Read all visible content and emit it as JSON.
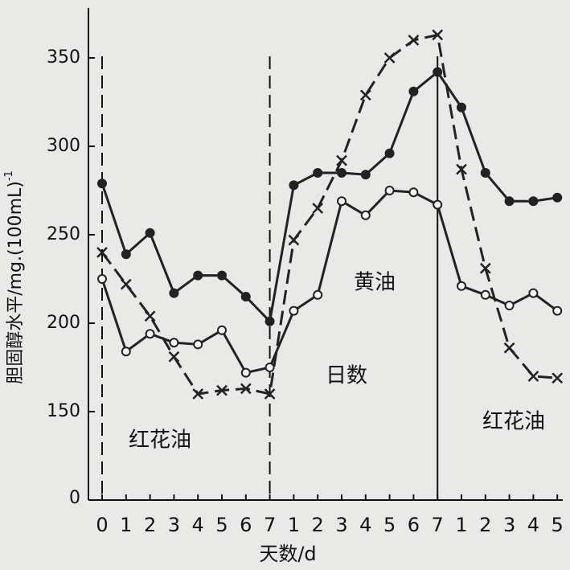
{
  "chart_data": {
    "type": "line",
    "categories": [
      "0",
      "1",
      "2",
      "3",
      "4",
      "5",
      "6",
      "7",
      "1",
      "2",
      "3",
      "4",
      "5",
      "6",
      "7",
      "1",
      "2",
      "3",
      "4",
      "5"
    ],
    "series": [
      {
        "color": "#222222",
        "marker": "filled",
        "dashed": false,
        "values": [
          279,
          239,
          251,
          217,
          227,
          227,
          215,
          201,
          278,
          285,
          285,
          284,
          296,
          331,
          342,
          322,
          285,
          269,
          269,
          271
        ]
      },
      {
        "color": "#222222",
        "marker": "open",
        "dashed": false,
        "values": [
          225,
          184,
          194,
          189,
          188,
          196,
          172,
          175,
          207,
          216,
          269,
          261,
          275,
          274,
          267,
          221,
          216,
          210,
          217,
          207
        ]
      },
      {
        "color": "#222222",
        "marker": "cross",
        "dashed": true,
        "values": [
          240,
          222,
          204,
          181,
          160,
          162,
          163,
          160,
          247,
          265,
          292,
          329,
          350,
          360,
          363,
          287,
          231,
          186,
          170,
          169
        ]
      }
    ],
    "ylim": [
      100,
      375
    ],
    "yticks": [
      150,
      200,
      250,
      300,
      350
    ],
    "y_origin_label": "0",
    "y_label": "胆固醇水平/mg.(100mL)",
    "y_label_sup": "-1",
    "x_label": "天数/d",
    "annotations": [
      "红花油",
      "黄油",
      "日数",
      "红花油"
    ]
  }
}
